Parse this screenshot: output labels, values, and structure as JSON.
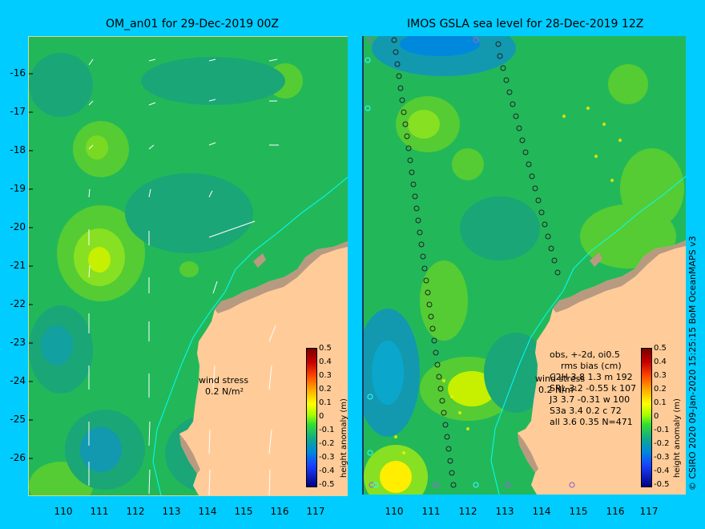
{
  "titles": {
    "left": "OM_an01 for 29-Dec-2019 00Z",
    "right": "IMOS GSLA sea level  for 28-Dec-2019 12Z"
  },
  "axes": {
    "lat_labels": [
      "-16",
      "-17",
      "-18",
      "-19",
      "-20",
      "-21",
      "-22",
      "-23",
      "-24",
      "-25",
      "-26"
    ],
    "lon_labels": [
      "110",
      "111",
      "112",
      "113",
      "114",
      "115",
      "116",
      "117"
    ]
  },
  "colorbar": {
    "ticks": [
      "0.5",
      "0.4",
      "0.3",
      "0.2",
      "0.1",
      "0",
      "-0.1",
      "-0.2",
      "-0.3",
      "-0.4",
      "-0.5"
    ],
    "title": "height anomaly (m)"
  },
  "wind_stress": {
    "label": "wind stress",
    "unit": "0.2 N/m²"
  },
  "obs_stats": {
    "header": "obs, +-2d, oi0.5",
    "columns": "rms bias (cm)",
    "rows": [
      "C2H   3.8 1.3 m 192",
      "SRL   3.2 -0.55 k 107",
      "J3    3.7 -0.31 w 100",
      "S3a   3.4 0.2 c 72",
      "all   3.6 0.35 N=471"
    ]
  },
  "credit": "© CSIRO 2020   09-Jan-2020 15:25:15 BoM OceanMAPS v3",
  "colors": {
    "background": "#00ccff",
    "ocean_base": "#22b85a",
    "land": "#ffcc99",
    "coast_rock": "#b89a80",
    "isobath": "#00ffff"
  }
}
